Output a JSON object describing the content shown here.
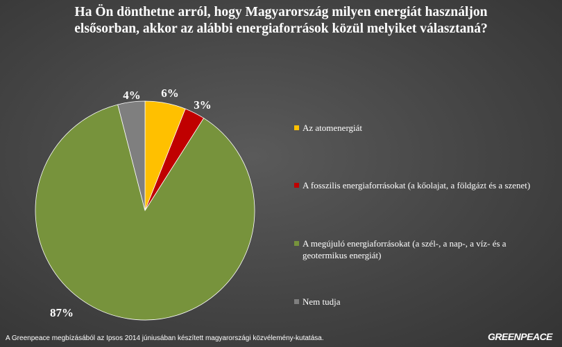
{
  "chart_data": {
    "type": "pie",
    "title_lines": [
      "Ha Ön dönthetne arról, hogy Magyarország milyen energiát használjon",
      "elsősorban, akkor az alábbi energiaforrások közül melyiket választaná?"
    ],
    "slices": [
      {
        "label": "Az atomenergiát",
        "value": 6,
        "display": "6%",
        "color": "#ffc000"
      },
      {
        "label": "A fosszilis energiaforrásokat (a kőolajat, a földgázt és a szenet)",
        "value": 3,
        "display": "3%",
        "color": "#c00000"
      },
      {
        "label": "A megújuló energiaforrásokat (a szél-, a nap-, a víz- és a geotermikus energiát)",
        "value": 87,
        "display": "87%",
        "color": "#77933c"
      },
      {
        "label": "Nem tudja",
        "value": 4,
        "display": "4%",
        "color": "#7f7f7f"
      }
    ],
    "legend_position": "right"
  },
  "footnote": "A Greenpeace megbízásából az Ipsos 2014 júniusában készített magyarországi közvélemény-kutatása.",
  "logo_text": "GREENPEACE"
}
